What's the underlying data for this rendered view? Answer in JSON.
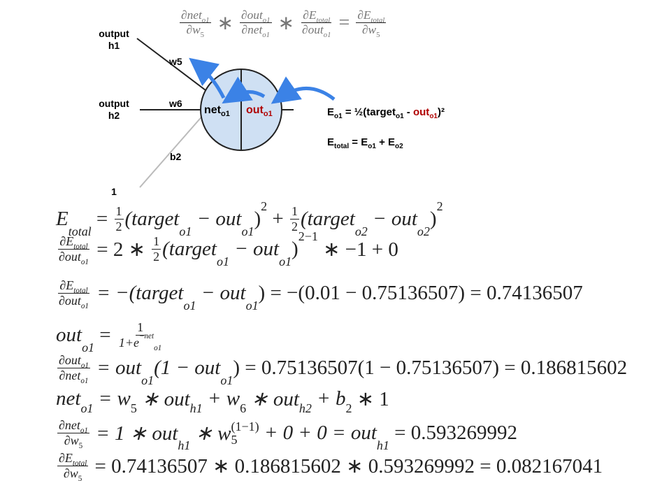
{
  "diagram": {
    "chain_rule": [
      {
        "num": [
          "∂net",
          {
            "sub": "o1"
          }
        ],
        "den": [
          "∂w",
          {
            "sub": "5"
          }
        ]
      },
      " ∗ ",
      {
        "num": [
          "∂out",
          {
            "sub": "o1"
          }
        ],
        "den": [
          "∂net",
          {
            "sub": "o1"
          }
        ]
      },
      " ∗ ",
      {
        "num": [
          "∂E",
          {
            "sub": "total"
          }
        ],
        "den": [
          "∂out",
          {
            "sub": "o1"
          }
        ]
      },
      " = ",
      {
        "num": [
          "∂E",
          {
            "sub": "total"
          }
        ],
        "den": [
          "∂w",
          {
            "sub": "5"
          }
        ]
      }
    ],
    "input_h1": [
      "output",
      "h1"
    ],
    "input_h2": [
      "output",
      "h2"
    ],
    "bias_input": "1",
    "weight_w5": "w5",
    "weight_w6": "w6",
    "weight_b2": "b2",
    "net_label": [
      "net",
      "o1"
    ],
    "out_label": [
      "out",
      "o1"
    ],
    "error_formula": [
      "E",
      "o1",
      " = ½(target",
      "o1",
      " - ",
      "out",
      "o1",
      ")²"
    ],
    "total_formula": [
      "E",
      "total",
      " = E",
      "o1",
      " + E",
      "o2"
    ]
  },
  "equations": [
    [
      "E",
      {
        "sub": "total"
      },
      " = ",
      {
        "num": [
          "1"
        ],
        "den": [
          "2"
        ]
      },
      "(target",
      {
        "sub": "o1"
      },
      " − out",
      {
        "sub": "o1"
      },
      ")",
      {
        "sup": "2"
      },
      " + ",
      {
        "num": [
          "1"
        ],
        "den": [
          "2"
        ]
      },
      "(target",
      {
        "sub": "o2"
      },
      " − out",
      {
        "sub": "o2"
      },
      ")",
      {
        "sup": "2"
      }
    ],
    [
      {
        "num": [
          "∂E",
          {
            "sub": "total"
          }
        ],
        "den": [
          "∂out",
          {
            "sub": "o1"
          }
        ]
      },
      " = 2 ∗ ",
      {
        "num": [
          "1"
        ],
        "den": [
          "2"
        ]
      },
      "(target",
      {
        "sub": "o1"
      },
      " − out",
      {
        "sub": "o1"
      },
      ")",
      {
        "sup": "2−1"
      },
      " ∗ −1 + 0"
    ],
    [
      {
        "num": [
          "∂E",
          {
            "sub": "total"
          }
        ],
        "den": [
          "∂out",
          {
            "sub": "o1"
          }
        ]
      },
      " = −(target",
      {
        "sub": "o1"
      },
      " − out",
      {
        "sub": "o1"
      },
      ") = −(0.01 − 0.75136507) = 0.74136507"
    ],
    [
      "out",
      {
        "sub": "o1"
      },
      " = ",
      {
        "num": [
          "1"
        ],
        "den": [
          "1+e",
          {
            "sup": "−net"
          },
          {
            "sub": "o1"
          }
        ]
      }
    ],
    [
      {
        "num": [
          "∂out",
          {
            "sub": "o1"
          }
        ],
        "den": [
          "∂net",
          {
            "sub": "o1"
          }
        ]
      },
      " = out",
      {
        "sub": "o1"
      },
      "(1 − out",
      {
        "sub": "o1"
      },
      ") = 0.75136507(1 − 0.75136507) = 0.186815602"
    ],
    [
      "net",
      {
        "sub": "o1"
      },
      " = w",
      {
        "sub": "5"
      },
      " ∗ out",
      {
        "sub": "h1"
      },
      " + w",
      {
        "sub": "6"
      },
      " ∗ out",
      {
        "sub": "h2"
      },
      " + b",
      {
        "sub": "2"
      },
      " ∗ 1"
    ],
    [
      {
        "num": [
          "∂net",
          {
            "sub": "o1"
          }
        ],
        "den": [
          "∂w",
          {
            "sub": "5"
          }
        ]
      },
      " = 1 ∗ out",
      {
        "sub": "h1"
      },
      " ∗ w",
      {
        "sub": "5",
        "sup": "(1−1)"
      },
      " + 0 + 0 = out",
      {
        "sub": "h1"
      },
      " = 0.593269992"
    ],
    [
      {
        "num": [
          "∂E",
          {
            "sub": "total"
          }
        ],
        "den": [
          "∂w",
          {
            "sub": "5"
          }
        ]
      },
      " = 0.74136507 ∗ 0.186815602 ∗ 0.593269992 = 0.082167041"
    ]
  ]
}
